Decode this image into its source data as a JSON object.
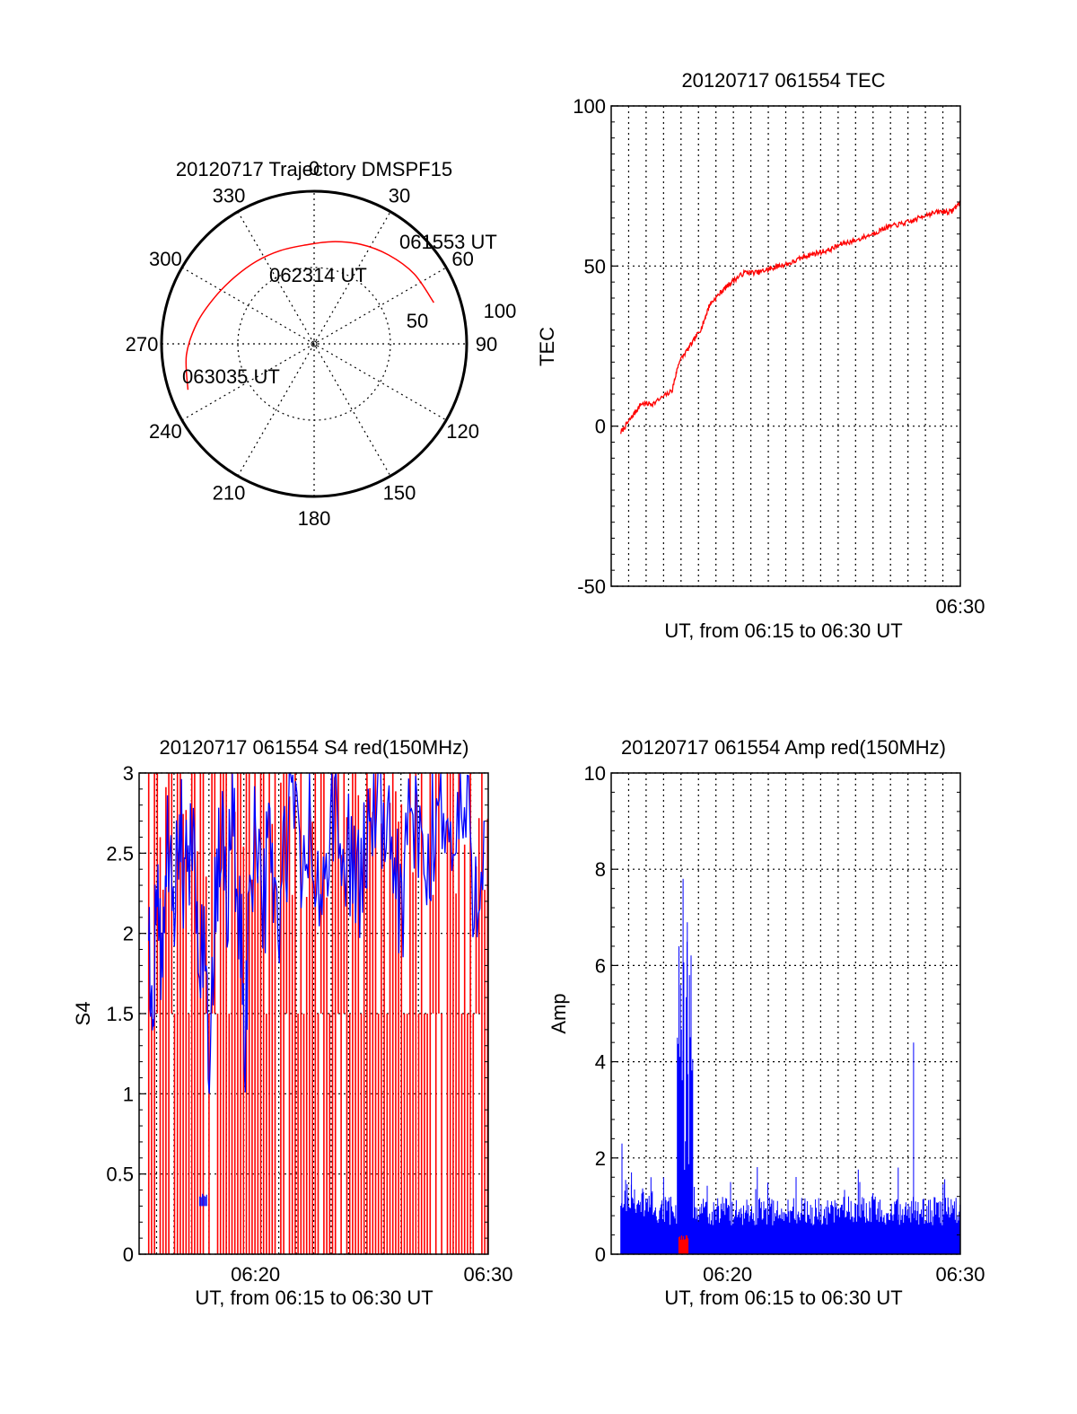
{
  "chart_data": [
    {
      "type": "polar",
      "title": "20120717 Trajectory DMSPF15",
      "angle_labels": [
        "0",
        "30",
        "60",
        "90",
        "120",
        "150",
        "180",
        "210",
        "240",
        "270",
        "300",
        "330"
      ],
      "radial_labels": [
        "50",
        "100"
      ],
      "time_labels": [
        "061553 UT",
        "062314 UT",
        "063035 UT"
      ],
      "trajectory": {
        "color": "#ff0000",
        "points": [
          [
            71,
            83
          ],
          [
            55,
            80
          ],
          [
            40,
            76
          ],
          [
            25,
            72
          ],
          [
            10,
            68
          ],
          [
            -5,
            65
          ],
          [
            -20,
            65
          ],
          [
            -35,
            66
          ],
          [
            -50,
            68
          ],
          [
            -65,
            72
          ],
          [
            -80,
            78
          ],
          [
            -95,
            84
          ],
          [
            -110,
            88
          ]
        ]
      }
    },
    {
      "type": "line",
      "title": "20120717 061554 TEC",
      "xlabel": "UT, from 06:15 to 06:30 UT",
      "ylabel": "TEC",
      "xlim": [
        6.25,
        6.5
      ],
      "ylim": [
        -50,
        100
      ],
      "yticks": [
        "-50",
        "0",
        "50",
        "100"
      ],
      "xticks": [
        {
          "value": 6.5,
          "label": "06:30"
        }
      ],
      "grid": true,
      "series": [
        {
          "color": "#ff0000",
          "x": [
            6.2569,
            6.265,
            6.2715,
            6.28,
            6.2935,
            6.2985,
            6.308,
            6.315,
            6.3205,
            6.329,
            6.336,
            6.3455,
            6.355,
            6.363,
            6.3695,
            6.379,
            6.3885,
            6.3965,
            6.406,
            6.4155,
            6.425,
            6.437,
            6.4465,
            6.456,
            6.4655,
            6.475,
            6.4858,
            6.4935,
            6.5
          ],
          "y": [
            -2,
            3,
            7,
            7,
            11,
            20,
            26,
            31,
            38,
            42,
            45,
            48,
            48,
            49,
            50,
            51,
            53,
            54,
            55,
            57,
            58,
            60,
            62,
            63,
            64,
            66,
            67,
            67,
            70
          ]
        }
      ]
    },
    {
      "type": "line",
      "title": "20120717 061554 S4 red(150MHz)",
      "xlabel": "UT, from 06:15 to 06:30 UT",
      "ylabel": "S4",
      "xlim": [
        6.25,
        6.5
      ],
      "ylim": [
        0,
        3
      ],
      "yticks": [
        "0",
        "0.5",
        "1",
        "1.5",
        "2",
        "2.5",
        "3"
      ],
      "xticks": [
        {
          "value": 6.3333,
          "label": "06:20"
        },
        {
          "value": 6.5,
          "label": "06:30"
        }
      ],
      "grid": true,
      "series": [
        {
          "name": "",
          "color": "#ff0000",
          "style": "dense-vertical",
          "x_range": [
            6.2569,
            6.5
          ],
          "y_range": [
            0,
            3
          ]
        },
        {
          "name": "",
          "color": "#0000ff",
          "x": [
            6.2569,
            6.2595,
            6.2625,
            6.2655,
            6.2695,
            6.2745,
            6.279,
            6.283,
            6.2875,
            6.2915,
            6.2965,
            6.301,
            6.305,
            6.309,
            6.313,
            6.3175,
            6.322,
            6.326,
            6.33,
            6.334,
            6.3395,
            6.3445,
            6.3495,
            6.355,
            6.36,
            6.366,
            6.372,
            6.378,
            6.384,
            6.39,
            6.396,
            6.402,
            6.408,
            6.414,
            6.42,
            6.426,
            6.432,
            6.438,
            6.444,
            6.45,
            6.456,
            6.462,
            6.468,
            6.474,
            6.48,
            6.486,
            6.492,
            6.498
          ],
          "y": [
            2.0,
            1.6,
            2.3,
            1.8,
            2.5,
            2.0,
            2.7,
            2.2,
            2.6,
            2.1,
            1.9,
            1.2,
            2.2,
            2.6,
            2.3,
            2.7,
            2.0,
            1.4,
            2.4,
            2.8,
            2.2,
            2.6,
            2.0,
            2.5,
            2.9,
            2.3,
            2.7,
            2.1,
            2.5,
            2.8,
            2.3,
            2.6,
            2.2,
            2.7,
            2.9,
            2.4,
            2.6,
            2.1,
            2.8,
            2.5,
            2.3,
            2.7,
            2.9,
            2.4,
            2.8,
            2.6,
            2.2,
            2.9
          ]
        }
      ]
    },
    {
      "type": "line",
      "title": "20120717 061554 Amp red(150MHz)",
      "xlabel": "UT, from 06:15 to 06:30 UT",
      "ylabel": "Amp",
      "xlim": [
        6.25,
        6.5
      ],
      "ylim": [
        0,
        10
      ],
      "yticks": [
        "0",
        "2",
        "4",
        "6",
        "8",
        "10"
      ],
      "xticks": [
        {
          "value": 6.3333,
          "label": "06:20"
        },
        {
          "value": 6.5,
          "label": "06:30"
        }
      ],
      "grid": true,
      "series": [
        {
          "name": "",
          "color": "#0000ff",
          "style": "noise",
          "x_range": [
            6.2569,
            6.5
          ],
          "baseline": 0.6,
          "spikes": [
            [
              6.2577,
              2.3
            ],
            [
              6.2645,
              1.7
            ],
            [
              6.2785,
              1.6
            ],
            [
              6.3015,
              7.8
            ],
            [
              6.3045,
              6.9
            ],
            [
              6.2985,
              6.4
            ],
            [
              6.3095,
              1.4
            ],
            [
              6.3355,
              1.5
            ],
            [
              6.3905,
              1.1
            ],
            [
              6.428,
              1.5
            ],
            [
              6.4555,
              1.8
            ],
            [
              6.4665,
              4.4
            ]
          ]
        },
        {
          "name": "",
          "color": "#ff0000",
          "x": [
            6.2985,
            6.3055
          ],
          "y": [
            0.3,
            0.35
          ]
        }
      ]
    }
  ]
}
